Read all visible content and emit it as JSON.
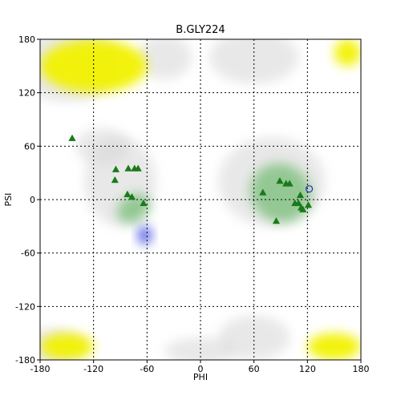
{
  "chart_data": {
    "type": "scatter",
    "title": "B.GLY224",
    "xlabel": "PHI",
    "ylabel": "PSI",
    "xlim": [
      -180,
      180
    ],
    "ylim": [
      -180,
      180
    ],
    "xticks": [
      -180,
      -120,
      -60,
      0,
      60,
      120,
      180
    ],
    "yticks": [
      -180,
      -120,
      -60,
      0,
      60,
      120,
      180
    ],
    "grid": true,
    "grid_style": "dotted",
    "marker_color": "#1a7a1a",
    "outlier_color": "#2b2bb5",
    "background_regions": [
      {
        "region": "yellow",
        "color": "#f2f200",
        "phi": [
          -180,
          -60
        ],
        "psi": [
          120,
          180
        ]
      },
      {
        "region": "yellow",
        "color": "#f2f200",
        "phi": [
          120,
          180
        ],
        "psi": [
          -180,
          -150
        ]
      },
      {
        "region": "yellow",
        "color": "#f2f200",
        "phi": [
          -180,
          -120
        ],
        "psi": [
          -180,
          -150
        ]
      },
      {
        "region": "yellow",
        "color": "#f2f200",
        "phi": [
          150,
          180
        ],
        "psi": [
          150,
          180
        ]
      },
      {
        "region": "green",
        "color": "#2ea02e",
        "phi": [
          55,
          125
        ],
        "psi": [
          -25,
          40
        ]
      },
      {
        "region": "green",
        "color": "#2ea02e",
        "phi": [
          -90,
          -60
        ],
        "psi": [
          -30,
          10
        ]
      },
      {
        "region": "blue",
        "color": "#3040e0",
        "phi": [
          -70,
          -55
        ],
        "psi": [
          -50,
          -30
        ]
      }
    ],
    "series": [
      {
        "marker": "triangle",
        "points": [
          {
            "phi": -144,
            "psi": 69
          },
          {
            "phi": -95,
            "psi": 34
          },
          {
            "phi": -96,
            "psi": 22
          },
          {
            "phi": -81,
            "psi": 35
          },
          {
            "phi": -74,
            "psi": 35
          },
          {
            "phi": -70,
            "psi": 35
          },
          {
            "phi": -82,
            "psi": 6
          },
          {
            "phi": -77,
            "psi": 3
          },
          {
            "phi": -64,
            "psi": -4
          },
          {
            "phi": 70,
            "psi": 8
          },
          {
            "phi": 89,
            "psi": 21
          },
          {
            "phi": 96,
            "psi": 18
          },
          {
            "phi": 100,
            "psi": 18
          },
          {
            "phi": 112,
            "psi": 5
          },
          {
            "phi": 106,
            "psi": -4
          },
          {
            "phi": 110,
            "psi": -4
          },
          {
            "phi": 113,
            "psi": -9
          },
          {
            "phi": 115,
            "psi": -11
          },
          {
            "phi": 121,
            "psi": -6
          },
          {
            "phi": 85,
            "psi": -24
          }
        ]
      },
      {
        "marker": "circle",
        "points": [
          {
            "phi": 122,
            "psi": 12
          }
        ]
      }
    ]
  }
}
